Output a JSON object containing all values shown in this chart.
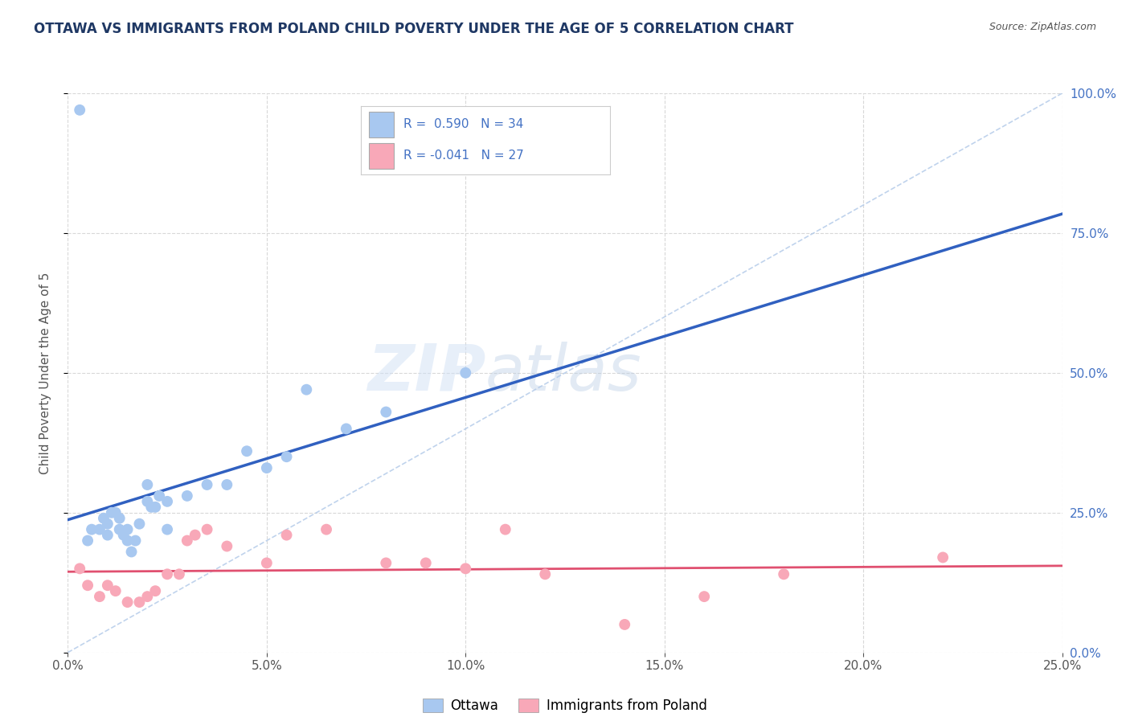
{
  "title": "OTTAWA VS IMMIGRANTS FROM POLAND CHILD POVERTY UNDER THE AGE OF 5 CORRELATION CHART",
  "source": "Source: ZipAtlas.com",
  "ylabel": "Child Poverty Under the Age of 5",
  "xlim": [
    0,
    25
  ],
  "ylim": [
    0,
    100
  ],
  "xlabel_vals": [
    0,
    5,
    10,
    15,
    20,
    25
  ],
  "ylabel_vals": [
    0,
    25,
    50,
    75,
    100
  ],
  "ottawa_R": 0.59,
  "ottawa_N": 34,
  "poland_R": -0.041,
  "poland_N": 27,
  "ottawa_color": "#a8c8f0",
  "poland_color": "#f8a8b8",
  "ottawa_line_color": "#3060c0",
  "poland_line_color": "#e05070",
  "ref_line_color": "#b0c8e8",
  "background_color": "#ffffff",
  "watermark_zip": "ZIP",
  "watermark_atlas": "atlas",
  "legend_labels": [
    "Ottawa",
    "Immigrants from Poland"
  ],
  "title_color": "#1f3864",
  "source_color": "#555555",
  "axis_label_color": "#555555",
  "tick_color": "#555555",
  "right_tick_color": "#4472c4",
  "grid_color": "#d8d8d8",
  "ottawa_points": [
    [
      0.3,
      97
    ],
    [
      0.5,
      20
    ],
    [
      0.6,
      22
    ],
    [
      0.8,
      22
    ],
    [
      0.9,
      24
    ],
    [
      1.0,
      21
    ],
    [
      1.0,
      23
    ],
    [
      1.1,
      25
    ],
    [
      1.2,
      25
    ],
    [
      1.3,
      22
    ],
    [
      1.3,
      24
    ],
    [
      1.4,
      21
    ],
    [
      1.5,
      20
    ],
    [
      1.5,
      22
    ],
    [
      1.6,
      18
    ],
    [
      1.7,
      20
    ],
    [
      1.8,
      23
    ],
    [
      2.0,
      27
    ],
    [
      2.0,
      30
    ],
    [
      2.1,
      26
    ],
    [
      2.2,
      26
    ],
    [
      2.3,
      28
    ],
    [
      2.5,
      22
    ],
    [
      2.5,
      27
    ],
    [
      3.0,
      28
    ],
    [
      3.5,
      30
    ],
    [
      4.0,
      30
    ],
    [
      4.5,
      36
    ],
    [
      5.0,
      33
    ],
    [
      5.5,
      35
    ],
    [
      6.0,
      47
    ],
    [
      7.0,
      40
    ],
    [
      8.0,
      43
    ],
    [
      10.0,
      50
    ]
  ],
  "poland_points": [
    [
      0.3,
      15
    ],
    [
      0.5,
      12
    ],
    [
      0.8,
      10
    ],
    [
      1.0,
      12
    ],
    [
      1.2,
      11
    ],
    [
      1.5,
      9
    ],
    [
      1.8,
      9
    ],
    [
      2.0,
      10
    ],
    [
      2.2,
      11
    ],
    [
      2.5,
      14
    ],
    [
      2.8,
      14
    ],
    [
      3.0,
      20
    ],
    [
      3.2,
      21
    ],
    [
      3.5,
      22
    ],
    [
      4.0,
      19
    ],
    [
      5.0,
      16
    ],
    [
      5.5,
      21
    ],
    [
      6.5,
      22
    ],
    [
      8.0,
      16
    ],
    [
      9.0,
      16
    ],
    [
      10.0,
      15
    ],
    [
      11.0,
      22
    ],
    [
      12.0,
      14
    ],
    [
      14.0,
      5
    ],
    [
      16.0,
      10
    ],
    [
      18.0,
      14
    ],
    [
      22.0,
      17
    ]
  ]
}
